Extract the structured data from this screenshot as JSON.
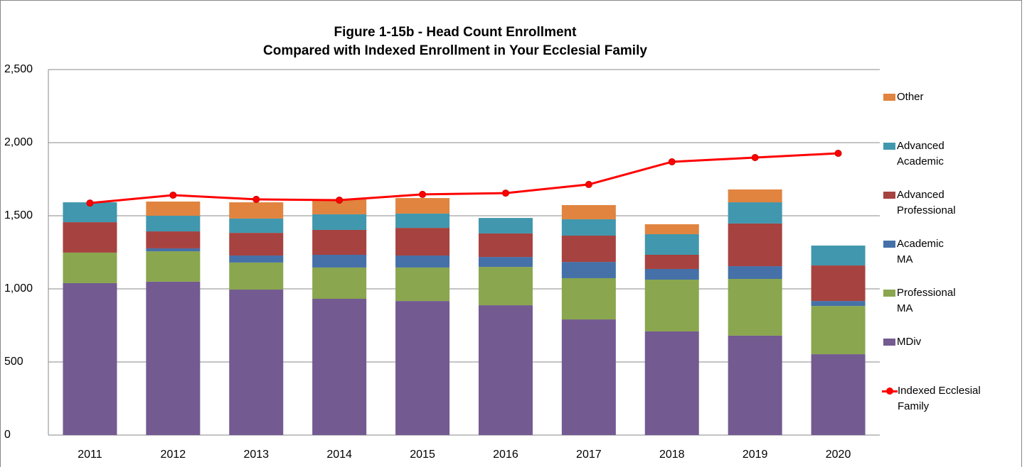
{
  "chart_data": {
    "type": "bar",
    "title": "Figure 1-15b - Head Count Enrollment",
    "subtitle": "Compared with Indexed Enrollment in Your Ecclesial Family",
    "categories": [
      "2011",
      "2012",
      "2013",
      "2014",
      "2015",
      "2016",
      "2017",
      "2018",
      "2019",
      "2020"
    ],
    "ylim": [
      0,
      2500
    ],
    "yticks": [
      0,
      500,
      {
        "value": 1000,
        "label": "1,000"
      },
      {
        "value": 1500,
        "label": "1,500"
      },
      {
        "value": 2000,
        "label": "2,000"
      },
      {
        "value": 2500,
        "label": "2,500"
      }
    ],
    "grid": true,
    "legend": "right",
    "series": [
      {
        "name": "MDiv",
        "color": "#735a91",
        "type": "bar",
        "values": [
          1039,
          1049,
          995,
          932,
          917,
          888,
          791,
          709,
          680,
          553
        ]
      },
      {
        "name": "Professional MA",
        "color": "#8aa64e",
        "type": "bar",
        "values": [
          209,
          208,
          185,
          214,
          229,
          262,
          282,
          354,
          388,
          330
        ]
      },
      {
        "name": "Academic MA",
        "color": "#4570a8",
        "type": "bar",
        "values": [
          0,
          20,
          48,
          87,
          82,
          68,
          111,
          73,
          87,
          34
        ]
      },
      {
        "name": "Advanced Professional",
        "color": "#a6423f",
        "type": "bar",
        "values": [
          208,
          116,
          155,
          170,
          189,
          161,
          180,
          97,
          292,
          243
        ]
      },
      {
        "name": "Advanced Academic",
        "color": "#4197ae",
        "type": "bar",
        "values": [
          136,
          107,
          98,
          107,
          98,
          106,
          112,
          141,
          145,
          136
        ]
      },
      {
        "name": "Other",
        "color": "#e0843f",
        "type": "bar",
        "values": [
          0,
          97,
          111,
          102,
          106,
          0,
          97,
          68,
          88,
          0
        ]
      },
      {
        "name": "Indexed Ecclesial Family",
        "color": "#ff0000",
        "type": "line",
        "values": [
          1587,
          1641,
          1612,
          1607,
          1646,
          1655,
          1714,
          1869,
          1898,
          1927
        ]
      }
    ]
  }
}
